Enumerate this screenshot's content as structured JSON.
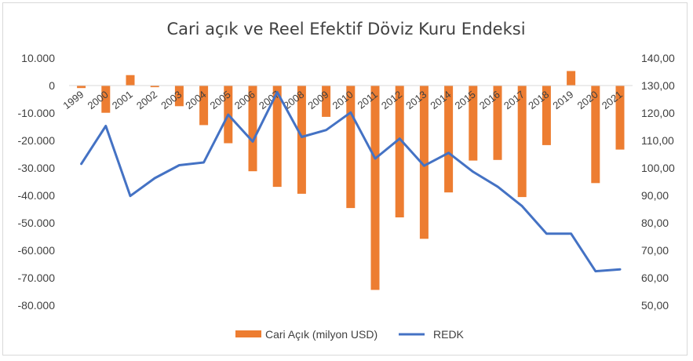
{
  "chart_data": {
    "type": "bar+line",
    "title": "Cari açık ve Reel Efektif Döviz Kuru Endeksi",
    "categories": [
      "1999",
      "2000",
      "2001",
      "2002",
      "2003",
      "2004",
      "2005",
      "2006",
      "2007",
      "2008",
      "2009",
      "2010",
      "2011",
      "2012",
      "2013",
      "2014",
      "2015",
      "2016",
      "2017",
      "2018",
      "2019",
      "2020",
      "2021"
    ],
    "series": [
      {
        "name": "Cari Açık (milyon USD)",
        "type": "bar",
        "axis": "left",
        "color": "#ED7D31",
        "values": [
          -900,
          -9900,
          3800,
          -600,
          -7500,
          -14400,
          -21000,
          -31200,
          -36900,
          -39400,
          -11400,
          -44600,
          -74400,
          -48000,
          -55800,
          -38900,
          -27300,
          -27100,
          -40600,
          -21700,
          5300,
          -35500,
          -23300
        ]
      },
      {
        "name": "REDK",
        "type": "line",
        "axis": "right",
        "color": "#4472C4",
        "values": [
          101.5,
          115.3,
          89.8,
          96.3,
          101.0,
          102.0,
          119.4,
          109.6,
          127.6,
          111.3,
          113.8,
          120.2,
          103.4,
          110.7,
          100.8,
          105.5,
          98.6,
          93.2,
          86.1,
          76.1,
          76.1,
          62.4,
          63.1
        ]
      }
    ],
    "yaxis_left": {
      "ylim": [
        -80000,
        10000
      ],
      "ticks": [
        10000,
        0,
        -10000,
        -20000,
        -30000,
        -40000,
        -50000,
        -60000,
        -70000,
        -80000
      ],
      "tick_labels": [
        "10.000",
        "0",
        "-10.000",
        "-20.000",
        "-30.000",
        "-40.000",
        "-50.000",
        "-60.000",
        "-70.000",
        "-80.000"
      ]
    },
    "yaxis_right": {
      "ylim": [
        50,
        140
      ],
      "ticks": [
        140,
        130,
        120,
        110,
        100,
        90,
        80,
        70,
        60,
        50
      ],
      "tick_labels": [
        "140,00",
        "130,00",
        "120,00",
        "110,00",
        "100,00",
        "90,00",
        "80,00",
        "70,00",
        "60,00",
        "50,00"
      ]
    },
    "grid": false,
    "legend_position": "bottom"
  }
}
